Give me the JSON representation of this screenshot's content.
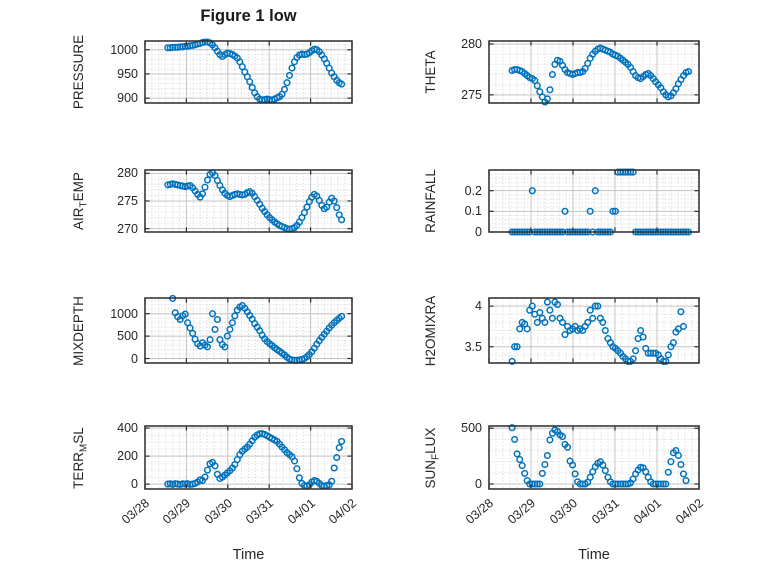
{
  "chart_data": {
    "type": "scatter",
    "title": "Figure 1 low",
    "xlabel": "Time",
    "grid": "major-solid-minor-dotted",
    "legend": "none",
    "x_axis": {
      "unit": "days since 03/28 00:00",
      "xlim": [
        0,
        5
      ],
      "tick_values": [
        0,
        1,
        2,
        3,
        4,
        5
      ],
      "tick_labels": [
        "03/28",
        "03/29",
        "03/30",
        "03/31",
        "04/01",
        "04/02"
      ],
      "minor_divisions_per_day": 6
    },
    "x": {
      "start": 0.55,
      "step": 0.06,
      "count": 71
    },
    "style": {
      "marker_color": "#0072BD",
      "marker_shape": "open-circle",
      "axis_color": "#2b2b2b",
      "major_grid_color": "#c4c4c4",
      "minor_grid_color": "#d2d2d2",
      "text_color": "#262626",
      "background": "#ffffff"
    },
    "subplots": [
      {
        "name": "PRESSURE",
        "row": 0,
        "col": 0,
        "label_parts": {
          "pre": "PRESSURE",
          "sub": "",
          "post": ""
        },
        "ylim": [
          890,
          1018
        ],
        "ytick_values": [
          900,
          950,
          1000
        ],
        "ytick_labels": [
          "900",
          "950",
          "1000"
        ],
        "yminor": 10,
        "values": [
          1004,
          1004,
          1005,
          1005,
          1005,
          1006,
          1006,
          1007,
          1007,
          1008,
          1009,
          1010,
          1012,
          1013,
          1015,
          1016,
          1016,
          1014,
          1010,
          1004,
          997,
          990,
          986,
          990,
          993,
          992,
          990,
          987,
          983,
          975,
          965,
          954,
          944,
          934,
          922,
          911,
          903,
          898,
          896,
          897,
          898,
          897,
          896,
          898,
          901,
          903,
          908,
          918,
          932,
          947,
          962,
          975,
          984,
          989,
          991,
          990,
          991,
          994,
          998,
          1001,
          1000,
          996,
          989,
          981,
          972,
          962,
          952,
          944,
          937,
          932,
          929
        ]
      },
      {
        "name": "THETA",
        "row": 0,
        "col": 1,
        "label_parts": {
          "pre": "THETA",
          "sub": "",
          "post": ""
        },
        "ylim": [
          274.2,
          280.3
        ],
        "ytick_values": [
          275,
          280
        ],
        "ytick_labels": [
          "275",
          "280"
        ],
        "yminor": 1,
        "values": [
          277.4,
          277.5,
          277.5,
          277.4,
          277.3,
          277.1,
          276.9,
          276.7,
          276.6,
          276.4,
          275.9,
          275.3,
          274.8,
          274.3,
          274.6,
          275.5,
          277.0,
          278.0,
          278.4,
          278.3,
          277.9,
          277.5,
          277.2,
          277.1,
          277.0,
          277.1,
          277.2,
          277.2,
          277.3,
          277.6,
          278.1,
          278.6,
          279.0,
          279.3,
          279.5,
          279.6,
          279.5,
          279.4,
          279.3,
          279.2,
          279.0,
          278.9,
          278.8,
          278.6,
          278.4,
          278.2,
          278.0,
          277.7,
          277.3,
          276.9,
          276.7,
          276.6,
          276.8,
          277.0,
          277.1,
          276.9,
          276.6,
          276.3,
          276.0,
          275.7,
          275.3,
          275.0,
          274.8,
          274.9,
          275.2,
          275.6,
          276.1,
          276.5,
          276.9,
          277.2,
          277.3
        ]
      },
      {
        "name": "AIR_TEMP",
        "row": 1,
        "col": 0,
        "label_parts": {
          "pre": "AIR",
          "sub": "T",
          "post": "EMP"
        },
        "ylim": [
          269.4,
          280.6
        ],
        "ytick_values": [
          270,
          275,
          280
        ],
        "ytick_labels": [
          "270",
          "275",
          "280"
        ],
        "yminor": 1,
        "values": [
          277.9,
          278.0,
          278.1,
          278.0,
          277.9,
          277.8,
          277.7,
          277.6,
          277.7,
          277.8,
          277.4,
          276.8,
          276.2,
          275.7,
          276.3,
          277.5,
          278.8,
          279.8,
          280.1,
          279.6,
          278.7,
          277.8,
          277.0,
          276.4,
          276.0,
          275.8,
          276.0,
          276.2,
          276.3,
          276.2,
          276.1,
          276.2,
          276.5,
          276.7,
          276.4,
          275.8,
          275.1,
          274.4,
          273.7,
          273.1,
          272.5,
          272.0,
          271.6,
          271.2,
          270.9,
          270.6,
          270.4,
          270.2,
          270.0,
          269.9,
          270.0,
          270.2,
          270.6,
          271.2,
          272.0,
          272.9,
          273.9,
          274.9,
          275.7,
          276.2,
          275.9,
          275.1,
          274.2,
          273.6,
          273.9,
          274.8,
          275.5,
          275.0,
          273.8,
          272.5,
          271.6
        ]
      },
      {
        "name": "RAINFALL",
        "row": 1,
        "col": 1,
        "label_parts": {
          "pre": "RAINFALL",
          "sub": "",
          "post": ""
        },
        "ylim": [
          0,
          0.3
        ],
        "ytick_values": [
          0,
          0.1,
          0.2
        ],
        "ytick_labels": [
          "0",
          "0.1",
          "0.2"
        ],
        "yminor": 0.02,
        "values": [
          0,
          0,
          0,
          0,
          0,
          0,
          0,
          0,
          0.2,
          0,
          0,
          0,
          0,
          0,
          0,
          0,
          0,
          0,
          0,
          0,
          0,
          0.1,
          0,
          0,
          0,
          0,
          0,
          0,
          0,
          0,
          0,
          0.1,
          0,
          0.2,
          0,
          0,
          0,
          0,
          0,
          0,
          0.1,
          0.1,
          0.29,
          0.29,
          0.29,
          0.29,
          0.29,
          0.29,
          0.29,
          0,
          0,
          0,
          0,
          0,
          0,
          0,
          0,
          0,
          0,
          0,
          0,
          0,
          0,
          0,
          0,
          0,
          0,
          0,
          0,
          0,
          0
        ]
      },
      {
        "name": "MIXDEPTH",
        "row": 2,
        "col": 0,
        "label_parts": {
          "pre": "MIXDEPTH",
          "sub": "",
          "post": ""
        },
        "ylim": [
          -100,
          1350
        ],
        "ytick_values": [
          0,
          500,
          1000
        ],
        "ytick_labels": [
          "0",
          "500",
          "1000"
        ],
        "yminor": 100,
        "values": [
          null,
          null,
          1340,
          1020,
          930,
          870,
          950,
          990,
          800,
          680,
          560,
          430,
          330,
          280,
          350,
          300,
          260,
          420,
          1000,
          650,
          870,
          420,
          310,
          260,
          500,
          650,
          800,
          950,
          1080,
          1150,
          1180,
          1120,
          1040,
          960,
          880,
          780,
          700,
          620,
          520,
          440,
          380,
          330,
          290,
          240,
          200,
          160,
          120,
          80,
          30,
          -10,
          -30,
          -40,
          -40,
          -30,
          -20,
          0,
          40,
          90,
          150,
          230,
          320,
          400,
          470,
          540,
          610,
          680,
          740,
          800,
          850,
          900,
          940
        ]
      },
      {
        "name": "H2OMIXRA",
        "row": 2,
        "col": 1,
        "label_parts": {
          "pre": "H2OMIXRA",
          "sub": "",
          "post": ""
        },
        "ylim": [
          3.3,
          4.1
        ],
        "ytick_values": [
          3.5,
          4
        ],
        "ytick_labels": [
          "3.5",
          "4"
        ],
        "yminor": 0.1,
        "values": [
          3.32,
          3.5,
          3.5,
          3.72,
          3.8,
          3.78,
          3.72,
          3.95,
          4.0,
          3.9,
          3.8,
          3.92,
          3.85,
          3.8,
          4.05,
          3.95,
          3.85,
          4.05,
          4.02,
          3.85,
          3.8,
          3.65,
          3.75,
          3.7,
          3.72,
          3.75,
          3.7,
          3.72,
          3.7,
          3.75,
          3.8,
          3.95,
          3.85,
          4.0,
          4.0,
          3.85,
          3.8,
          3.7,
          3.6,
          3.55,
          3.5,
          3.48,
          3.45,
          3.42,
          3.38,
          3.35,
          3.32,
          3.32,
          3.35,
          3.45,
          3.6,
          3.7,
          3.62,
          3.48,
          3.42,
          3.42,
          3.42,
          3.42,
          3.4,
          3.35,
          3.32,
          3.32,
          3.4,
          3.5,
          3.55,
          3.68,
          3.72,
          3.93,
          3.75,
          null,
          null
        ]
      },
      {
        "name": "TERR_MSL",
        "row": 3,
        "col": 0,
        "label_parts": {
          "pre": "TERR",
          "sub": "M",
          "post": "SL"
        },
        "ylim": [
          -35,
          415
        ],
        "ytick_values": [
          0,
          200,
          400
        ],
        "ytick_labels": [
          "0",
          "200",
          "400"
        ],
        "yminor": 50,
        "values": [
          0,
          2,
          -2,
          3,
          0,
          -3,
          2,
          0,
          3,
          -2,
          0,
          5,
          15,
          30,
          25,
          50,
          100,
          145,
          155,
          130,
          70,
          40,
          50,
          65,
          80,
          95,
          115,
          140,
          175,
          210,
          235,
          250,
          265,
          285,
          310,
          335,
          350,
          360,
          360,
          355,
          345,
          335,
          325,
          315,
          305,
          285,
          265,
          245,
          225,
          210,
          195,
          165,
          110,
          45,
          5,
          -10,
          -15,
          -5,
          15,
          25,
          20,
          5,
          -10,
          -15,
          -10,
          -5,
          20,
          115,
          190,
          260,
          305
        ]
      },
      {
        "name": "SUN_FLUX",
        "row": 3,
        "col": 1,
        "label_parts": {
          "pre": "SUN",
          "sub": "F",
          "post": "LUX"
        },
        "ylim": [
          -45,
          520
        ],
        "ytick_values": [
          0,
          500
        ],
        "ytick_labels": [
          "0",
          "500"
        ],
        "yminor": 100,
        "values": [
          505,
          400,
          270,
          220,
          165,
          95,
          30,
          0,
          0,
          0,
          0,
          0,
          95,
          175,
          255,
          395,
          455,
          485,
          470,
          440,
          425,
          355,
          330,
          205,
          170,
          90,
          20,
          0,
          0,
          0,
          15,
          60,
          110,
          155,
          185,
          200,
          170,
          120,
          60,
          20,
          0,
          0,
          0,
          0,
          0,
          0,
          0,
          10,
          45,
          90,
          125,
          150,
          145,
          110,
          60,
          20,
          0,
          0,
          0,
          0,
          0,
          0,
          105,
          200,
          280,
          300,
          255,
          175,
          90,
          30,
          null
        ]
      }
    ]
  }
}
